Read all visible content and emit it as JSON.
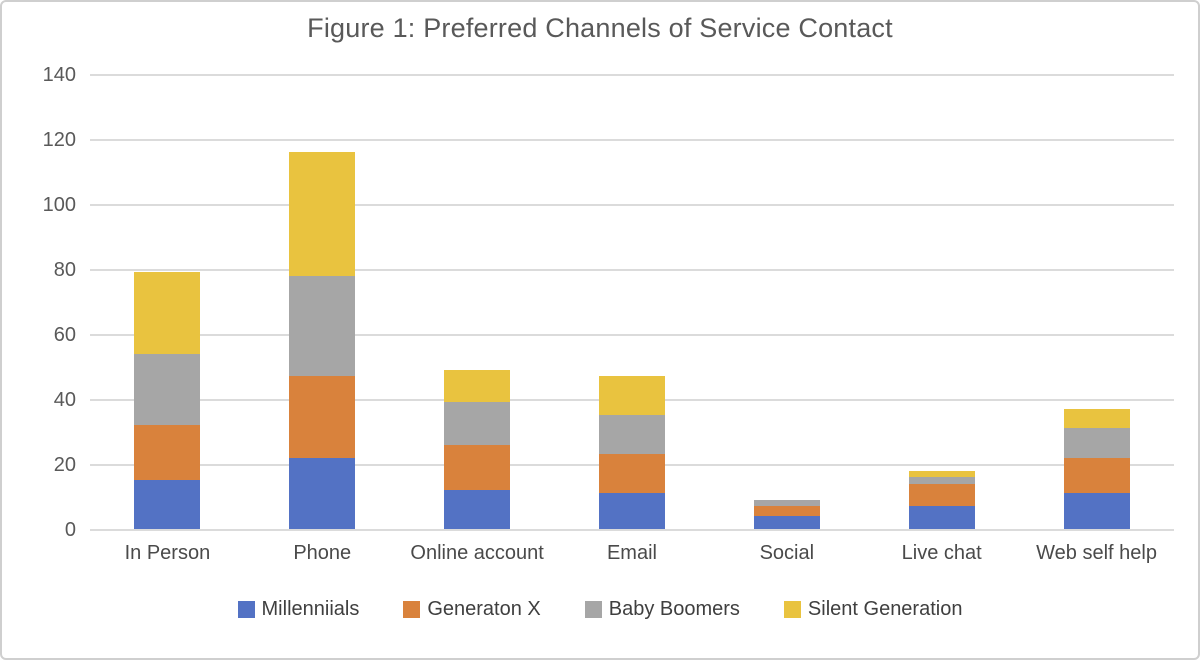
{
  "chart_data": {
    "type": "bar",
    "subtype": "stacked-vertical",
    "title": "Figure 1: Preferred Channels of Service Contact",
    "categories": [
      "In Person",
      "Phone",
      "Online account",
      "Email",
      "Social",
      "Live chat",
      "Web self help"
    ],
    "series": [
      {
        "name": "Millenniials",
        "color": "#5372c4",
        "values": [
          15,
          22,
          12,
          11,
          4,
          7,
          11
        ]
      },
      {
        "name": "Generaton X",
        "color": "#d9823c",
        "values": [
          17,
          25,
          14,
          12,
          3,
          7,
          11
        ]
      },
      {
        "name": "Baby Boomers",
        "color": "#a6a6a6",
        "values": [
          22,
          31,
          13,
          12,
          2,
          2,
          9
        ]
      },
      {
        "name": "Silent Generation",
        "color": "#e9c33f",
        "values": [
          25,
          38,
          10,
          12,
          0,
          2,
          6
        ]
      }
    ],
    "stack_totals": [
      79,
      116,
      49,
      47,
      9,
      18,
      37
    ],
    "y_ticks": [
      0,
      20,
      40,
      60,
      80,
      100,
      120,
      140
    ],
    "ylim": [
      0,
      140
    ],
    "xlabel": "",
    "ylabel": "",
    "grid": true,
    "gridline_color": "#dbdbdb",
    "text_color": "#595959",
    "legend_position": "bottom"
  }
}
